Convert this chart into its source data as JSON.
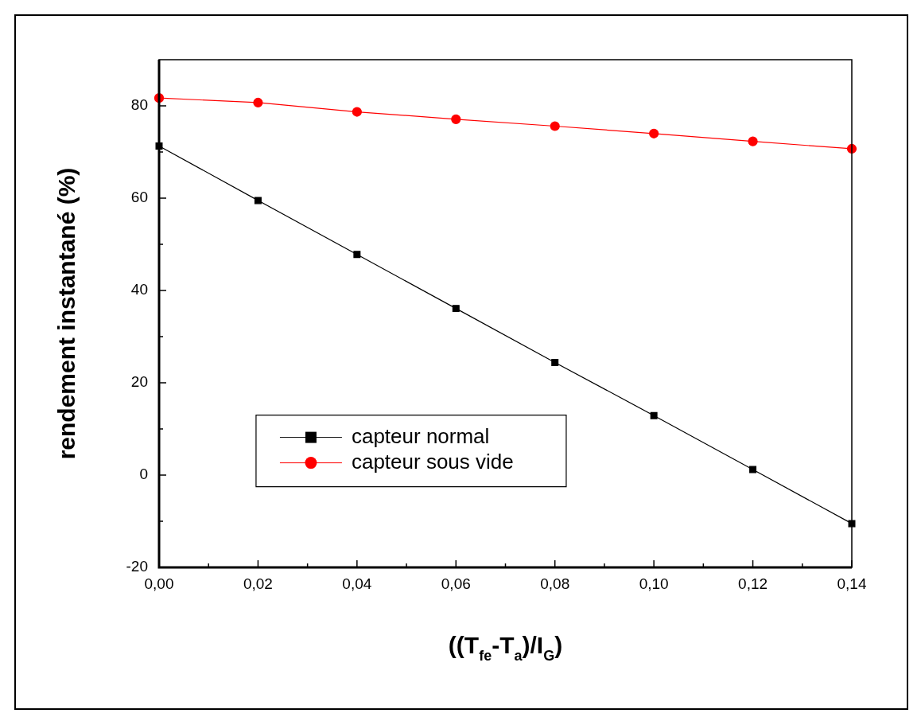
{
  "chart_data": {
    "type": "line",
    "xlabel": "((T$_{fe}$-T$_{a}$)/I$_{G}$)",
    "ylabel": "rendement instantané (%)",
    "x": [
      0,
      0.02,
      0.04,
      0.06,
      0.08,
      0.1,
      0.12,
      0.14
    ],
    "series": [
      {
        "name": "capteur normal",
        "color": "#000000",
        "marker": "square",
        "values": [
          71.3,
          59.5,
          47.8,
          36.1,
          24.4,
          12.9,
          1.2,
          -10.5
        ]
      },
      {
        "name": "capteur sous vide",
        "color": "#ff0000",
        "marker": "circle",
        "values": [
          81.7,
          80.7,
          78.7,
          77.1,
          75.6,
          74.0,
          72.3,
          70.7
        ]
      }
    ],
    "xlim": [
      0,
      0.14
    ],
    "xticks": [
      {
        "value": 0,
        "label": "0,00"
      },
      {
        "value": 0.01,
        "label": null
      },
      {
        "value": 0.02,
        "label": "0,02"
      },
      {
        "value": 0.03,
        "label": null
      },
      {
        "value": 0.04,
        "label": "0,04"
      },
      {
        "value": 0.05,
        "label": null
      },
      {
        "value": 0.06,
        "label": "0,06"
      },
      {
        "value": 0.07,
        "label": null
      },
      {
        "value": 0.08,
        "label": "0,08"
      },
      {
        "value": 0.09,
        "label": null
      },
      {
        "value": 0.1,
        "label": "0,10"
      },
      {
        "value": 0.11,
        "label": null
      },
      {
        "value": 0.12,
        "label": "0,12"
      },
      {
        "value": 0.13,
        "label": null
      },
      {
        "value": 0.14,
        "label": "0,14"
      }
    ],
    "ylim": [
      -20,
      90
    ],
    "yticks": [
      -20,
      {
        "value": -10,
        "label": null
      },
      0,
      {
        "value": 10,
        "label": null
      },
      20,
      {
        "value": 30,
        "label": null
      },
      40,
      {
        "value": 50,
        "label": null
      },
      60,
      {
        "value": 70,
        "label": null
      },
      80
    ],
    "grid": false,
    "legend": "bottom left",
    "line_style": "solid"
  }
}
